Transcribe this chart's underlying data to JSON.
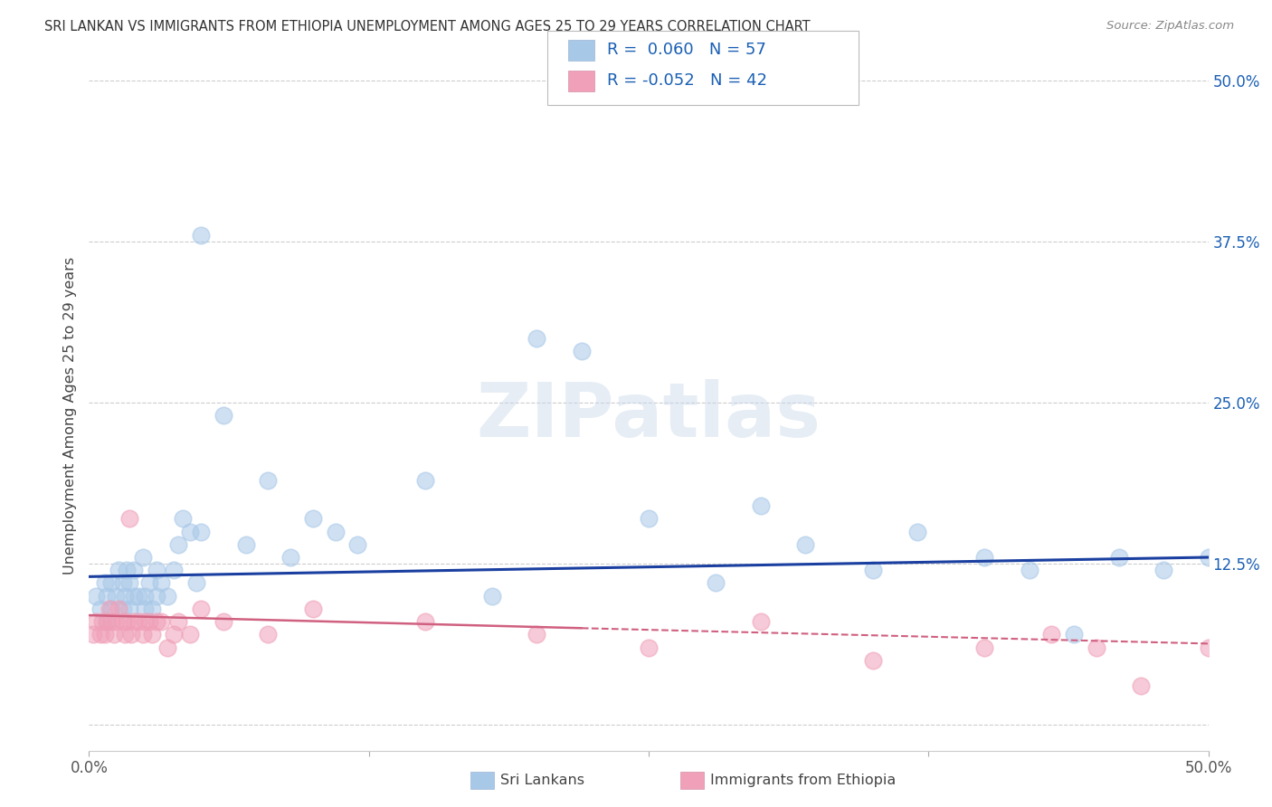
{
  "title": "SRI LANKAN VS IMMIGRANTS FROM ETHIOPIA UNEMPLOYMENT AMONG AGES 25 TO 29 YEARS CORRELATION CHART",
  "source": "Source: ZipAtlas.com",
  "ylabel": "Unemployment Among Ages 25 to 29 years",
  "xlim": [
    0.0,
    0.5
  ],
  "ylim": [
    -0.02,
    0.5
  ],
  "xticks": [
    0.0,
    0.125,
    0.25,
    0.375,
    0.5
  ],
  "yticks": [
    0.0,
    0.125,
    0.25,
    0.375,
    0.5
  ],
  "sri_lankan_color": "#a8c8e8",
  "ethiopia_color": "#f0a0b8",
  "sri_lankan_line_color": "#1a3fa0",
  "ethiopia_line_color": "#d06080",
  "legend_R1": "R =  0.060",
  "legend_N1": "N = 57",
  "legend_R2": "R = -0.052",
  "legend_N2": "N = 42",
  "legend_label1": "Sri Lankans",
  "legend_label2": "Immigrants from Ethiopia",
  "watermark": "ZIPatlas",
  "sri_lankans_x": [
    0.003,
    0.005,
    0.007,
    0.008,
    0.008,
    0.01,
    0.01,
    0.012,
    0.013,
    0.015,
    0.015,
    0.016,
    0.017,
    0.018,
    0.018,
    0.02,
    0.02,
    0.022,
    0.024,
    0.025,
    0.025,
    0.027,
    0.028,
    0.03,
    0.03,
    0.032,
    0.035,
    0.038,
    0.04,
    0.042,
    0.045,
    0.048,
    0.05,
    0.06,
    0.07,
    0.08,
    0.09,
    0.1,
    0.11,
    0.12,
    0.15,
    0.18,
    0.2,
    0.22,
    0.25,
    0.28,
    0.3,
    0.32,
    0.35,
    0.37,
    0.4,
    0.42,
    0.44,
    0.46,
    0.48,
    0.5,
    0.05
  ],
  "sri_lankans_y": [
    0.1,
    0.09,
    0.11,
    0.08,
    0.1,
    0.09,
    0.11,
    0.1,
    0.12,
    0.09,
    0.11,
    0.1,
    0.12,
    0.09,
    0.11,
    0.1,
    0.12,
    0.1,
    0.13,
    0.1,
    0.09,
    0.11,
    0.09,
    0.1,
    0.12,
    0.11,
    0.1,
    0.12,
    0.14,
    0.16,
    0.15,
    0.11,
    0.15,
    0.24,
    0.14,
    0.19,
    0.13,
    0.16,
    0.15,
    0.14,
    0.19,
    0.1,
    0.3,
    0.29,
    0.16,
    0.11,
    0.17,
    0.14,
    0.12,
    0.15,
    0.13,
    0.12,
    0.07,
    0.13,
    0.12,
    0.13,
    0.38
  ],
  "ethiopia_x": [
    0.002,
    0.003,
    0.005,
    0.006,
    0.007,
    0.008,
    0.009,
    0.01,
    0.011,
    0.012,
    0.013,
    0.015,
    0.016,
    0.017,
    0.018,
    0.019,
    0.02,
    0.022,
    0.024,
    0.025,
    0.027,
    0.028,
    0.03,
    0.032,
    0.035,
    0.038,
    0.04,
    0.045,
    0.05,
    0.06,
    0.08,
    0.1,
    0.15,
    0.2,
    0.25,
    0.3,
    0.35,
    0.4,
    0.43,
    0.45,
    0.47,
    0.5
  ],
  "ethiopia_y": [
    0.07,
    0.08,
    0.07,
    0.08,
    0.07,
    0.08,
    0.09,
    0.08,
    0.07,
    0.08,
    0.09,
    0.08,
    0.07,
    0.08,
    0.16,
    0.07,
    0.08,
    0.08,
    0.07,
    0.08,
    0.08,
    0.07,
    0.08,
    0.08,
    0.06,
    0.07,
    0.08,
    0.07,
    0.09,
    0.08,
    0.07,
    0.09,
    0.08,
    0.07,
    0.06,
    0.08,
    0.05,
    0.06,
    0.07,
    0.06,
    0.03,
    0.06
  ],
  "background_color": "#ffffff",
  "grid_color": "#cccccc"
}
